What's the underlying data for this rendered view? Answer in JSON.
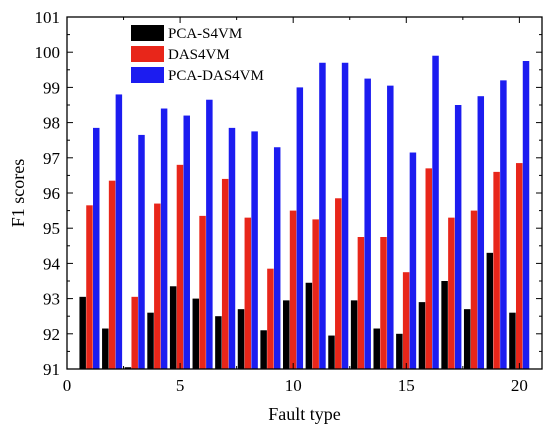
{
  "chart_data": {
    "type": "bar",
    "xlabel": "Fault type",
    "ylabel": "F1 scores",
    "xlim": [
      0,
      21
    ],
    "ylim": [
      91,
      101
    ],
    "xticks": [
      0,
      5,
      10,
      15,
      20
    ],
    "yticks": [
      91,
      92,
      93,
      94,
      95,
      96,
      97,
      98,
      99,
      100,
      101
    ],
    "grid": false,
    "legend_position": "top-left",
    "categories": [
      1,
      2,
      3,
      4,
      5,
      6,
      7,
      8,
      9,
      10,
      11,
      12,
      13,
      14,
      15,
      16,
      17,
      18,
      19,
      20
    ],
    "series": [
      {
        "name": "PCA-S4VM",
        "color": "#000000",
        "values": [
          93.05,
          92.15,
          91.05,
          92.6,
          93.35,
          93.0,
          92.5,
          92.7,
          92.1,
          92.95,
          93.45,
          91.95,
          92.95,
          92.15,
          92.0,
          92.9,
          93.5,
          92.7,
          94.3,
          92.6
        ]
      },
      {
        "name": "DAS4VM",
        "color": "#e8261a",
        "values": [
          95.65,
          96.35,
          93.05,
          95.7,
          96.8,
          95.35,
          96.4,
          95.3,
          93.85,
          95.5,
          95.25,
          95.85,
          94.75,
          94.75,
          93.75,
          96.7,
          95.3,
          95.5,
          96.6,
          96.85
        ]
      },
      {
        "name": "PCA-DAS4VM",
        "color": "#1c1cf0",
        "values": [
          97.85,
          98.8,
          97.65,
          98.4,
          98.2,
          98.65,
          97.85,
          97.75,
          97.3,
          99.0,
          99.7,
          99.7,
          99.25,
          99.05,
          97.15,
          99.9,
          98.5,
          98.75,
          99.2,
          99.75
        ]
      }
    ]
  }
}
